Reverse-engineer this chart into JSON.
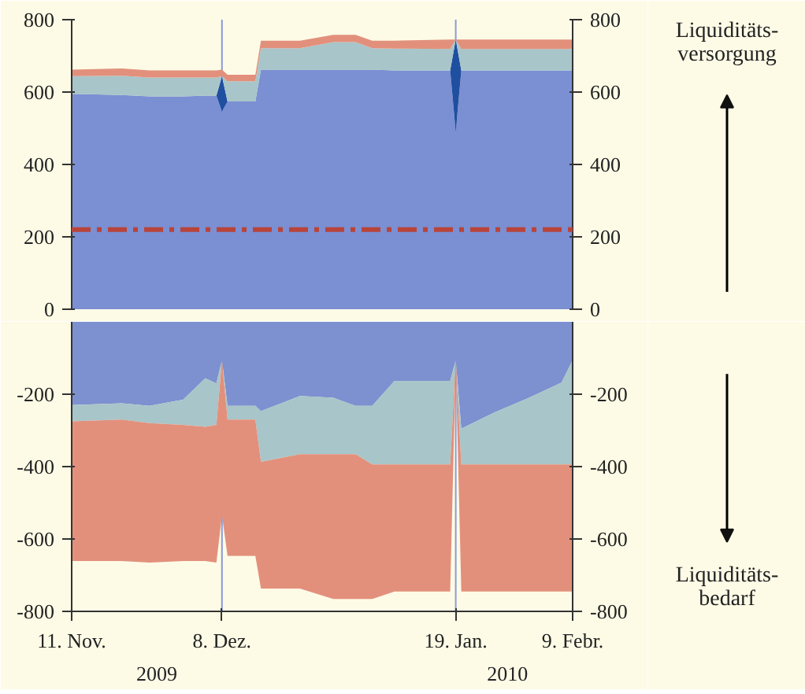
{
  "chart_data": [
    {
      "type": "area",
      "stacked": true,
      "tick_labels": "y",
      "x": [
        "2009-11-11",
        "2009-11-20",
        "2009-11-25",
        "2009-12-01",
        "2009-12-05",
        "2009-12-07",
        "2009-12-08",
        "2009-12-09",
        "2009-12-14",
        "2009-12-15",
        "2009-12-22",
        "2009-12-28",
        "2010-01-01",
        "2010-01-04",
        "2010-01-08",
        "2010-01-18",
        "2010-01-19",
        "2010-01-20",
        "2010-01-26",
        "2010-02-01",
        "2010-02-07",
        "2010-02-09"
      ],
      "series": [
        {
          "color": "#7b8fd3",
          "values": [
            595,
            592,
            588,
            588,
            590,
            590,
            546,
            574,
            574,
            662,
            662,
            662,
            662,
            662,
            660,
            660,
            490,
            660,
            660,
            660,
            660,
            660
          ]
        },
        {
          "color": "#1f4fa0",
          "values": [
            0,
            0,
            0,
            0,
            0,
            0,
            98,
            0,
            0,
            0,
            0,
            0,
            0,
            0,
            0,
            0,
            255,
            0,
            0,
            0,
            0,
            0
          ]
        },
        {
          "color": "#a8c5c9",
          "values": [
            49,
            53,
            52,
            52,
            50,
            50,
            0,
            56,
            56,
            59,
            59,
            76,
            76,
            59,
            60,
            59,
            0,
            59,
            59,
            59,
            59,
            59
          ]
        },
        {
          "color": "#e2907c",
          "values": [
            18,
            20,
            20,
            20,
            20,
            20,
            18,
            18,
            18,
            21,
            21,
            20,
            20,
            21,
            22,
            26,
            0,
            26,
            26,
            26,
            26,
            26
          ]
        }
      ],
      "xlim": [
        "2009-11-11",
        "2010-02-09"
      ],
      "ylim": [
        0,
        800
      ],
      "yticks": [
        0,
        200,
        400,
        600,
        800
      ],
      "y2lim": [
        0,
        800
      ],
      "y2ticks": [
        0,
        200,
        400,
        600,
        800
      ],
      "ref_lines": [
        {
          "axis": "y",
          "value": 220,
          "color": "#b8443a",
          "line_style": "dashdot"
        },
        {
          "axis": "x",
          "value": "2009-12-08",
          "color": "#8a9ad8"
        },
        {
          "axis": "x",
          "value": "2010-01-19",
          "color": "#8a9ad8"
        }
      ],
      "annotations": [
        "Liquiditäts-\nversorgung"
      ],
      "grid": false
    },
    {
      "type": "area",
      "stacked": true,
      "x": [
        "2009-11-11",
        "2009-11-20",
        "2009-11-25",
        "2009-12-01",
        "2009-12-05",
        "2009-12-07",
        "2009-12-08",
        "2009-12-09",
        "2009-12-14",
        "2009-12-15",
        "2009-12-22",
        "2009-12-28",
        "2010-01-01",
        "2010-01-04",
        "2010-01-08",
        "2010-01-18",
        "2010-01-19",
        "2010-01-20",
        "2010-01-26",
        "2010-02-01",
        "2010-02-07",
        "2010-02-09"
      ],
      "series": [
        {
          "color": "#7d90d0",
          "values": [
            -230,
            -225,
            -232,
            -215,
            -156,
            -170,
            -106,
            -232,
            -232,
            -247,
            -205,
            -210,
            -232,
            -232,
            -163,
            -163,
            -106,
            -295,
            -250,
            -211,
            -168,
            -106
          ]
        },
        {
          "color": "#a8c5c9",
          "values": [
            -45,
            -45,
            -48,
            -70,
            -134,
            -115,
            0,
            -38,
            -38,
            -140,
            -161,
            -156,
            -134,
            -162,
            -231,
            -231,
            0,
            -99,
            -144,
            -183,
            -226,
            -288
          ]
        },
        {
          "color": "#e2907c",
          "values": [
            -386,
            -391,
            -385,
            -376,
            -371,
            -380,
            -429,
            -377,
            -377,
            -350,
            -371,
            -400,
            -400,
            -372,
            -351,
            -351,
            -14,
            -351,
            -351,
            -351,
            -351,
            -351
          ]
        }
      ],
      "xlim": [
        "2009-11-11",
        "2010-02-09"
      ],
      "xticks": [
        {
          "value": "2009-11-11",
          "label": "11. Nov."
        },
        {
          "value": "2009-12-08",
          "label": "8. Dez."
        },
        {
          "value": "2010-01-19",
          "label": "19. Jan."
        },
        {
          "value": "2010-02-09",
          "label": "9. Febr."
        }
      ],
      "ylim": [
        -800,
        0
      ],
      "yticks": [
        -800,
        -600,
        -400,
        -200
      ],
      "y2lim": [
        -800,
        0
      ],
      "y2ticks": [
        -800,
        -600,
        -400,
        -200
      ],
      "ref_lines": [
        {
          "axis": "x",
          "value": "2009-12-08",
          "color": "#8a9ad8"
        },
        {
          "axis": "x",
          "value": "2010-01-19",
          "color": "#8a9ad8"
        }
      ],
      "annotations": [
        "2009",
        "2010",
        "Liquiditäts-\nbedarf"
      ],
      "grid": false
    }
  ]
}
